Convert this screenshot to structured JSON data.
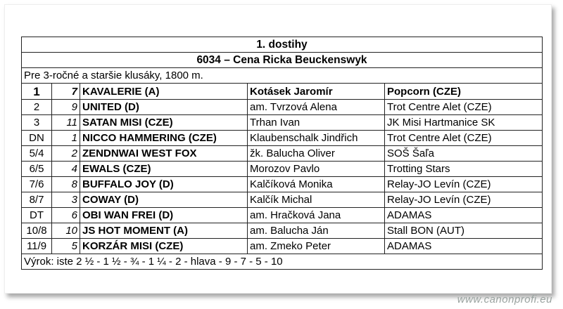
{
  "race": {
    "title": "1. dostihy",
    "name": "6034 – Cena Ricka Beuckenswyk",
    "description": "Pre 3-ročné a staršie klusáky, 1800 m.",
    "results": [
      {
        "place": "1",
        "number": "7",
        "horse": "KAVALERIE (A)",
        "driver": "Kotásek Jaromír",
        "owner": "Popcorn (CZE)"
      },
      {
        "place": "2",
        "number": "9",
        "horse": "UNITED (D)",
        "driver": "am. Tvrzová Alena",
        "owner": "Trot Centre Alet (CZE)"
      },
      {
        "place": "3",
        "number": "11",
        "horse": "SATAN MISI (CZE)",
        "driver": "Trhan Ivan",
        "owner": "JK Misi Hartmanice SK"
      },
      {
        "place": "DN",
        "number": "1",
        "horse": "NICCO HAMMERING (CZE)",
        "driver": "Klaubenschalk Jindřich",
        "owner": "Trot Centre Alet (CZE)"
      },
      {
        "place": "5/4",
        "number": "2",
        "horse": "ZENDNWAI WEST FOX",
        "driver": "žk. Balucha Oliver",
        "owner": "SOŠ Šaľa"
      },
      {
        "place": "6/5",
        "number": "4",
        "horse": "EWALS (CZE)",
        "driver": "Morozov Pavlo",
        "owner": "Trotting Stars"
      },
      {
        "place": "7/6",
        "number": "8",
        "horse": "BUFFALO JOY (D)",
        "driver": "Kalčíková Monika",
        "owner": "Relay-JO Levín (CZE)"
      },
      {
        "place": "8/7",
        "number": "3",
        "horse": "COWAY (D)",
        "driver": "Kalčík Michal",
        "owner": "Relay-JO Levín (CZE)"
      },
      {
        "place": "DT",
        "number": "6",
        "horse": "OBI WAN FREI (D)",
        "driver": "am. Hračková Jana",
        "owner": "ADAMAS"
      },
      {
        "place": "10/8",
        "number": "10",
        "horse": "JS HOT MOMENT (A)",
        "driver": "am. Balucha Ján",
        "owner": "Stall BON (AUT)"
      },
      {
        "place": "11/9",
        "number": "5",
        "horse": "KORZÁR MISI (CZE)",
        "driver": "am. Zmeko Peter",
        "owner": "ADAMAS"
      }
    ],
    "verdict": "Výrok: iste 2 ½ - 1 ½ - ¾ - 1 ¼ - 2 - hlava - 9 - 7 - 5 - 10"
  },
  "watermark": "www.canonprofi.eu"
}
